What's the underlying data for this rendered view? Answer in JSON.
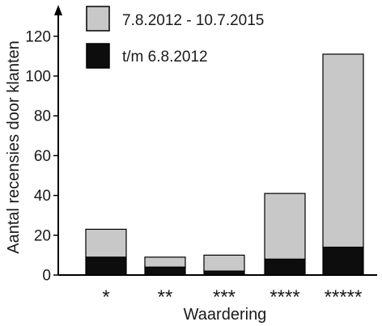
{
  "chart_data": {
    "type": "bar",
    "stacked": true,
    "categories": [
      "*",
      "**",
      "***",
      "****",
      "*****"
    ],
    "series": [
      {
        "name": "t/m 6.8.2012",
        "values": [
          9,
          4,
          2,
          8,
          14
        ],
        "color": "#0d0d0d"
      },
      {
        "name": "7.8.2012 - 10.7.2015",
        "values": [
          14,
          5,
          8,
          33,
          97
        ],
        "color": "#c8c8c8"
      }
    ],
    "title": "",
    "xlabel": "Waardering",
    "ylabel": "Aantal recensies door klanten",
    "ylim": [
      0,
      130
    ],
    "yticks": [
      0,
      20,
      40,
      60,
      80,
      100,
      120
    ],
    "grid": false,
    "legend_position": "top-left"
  }
}
